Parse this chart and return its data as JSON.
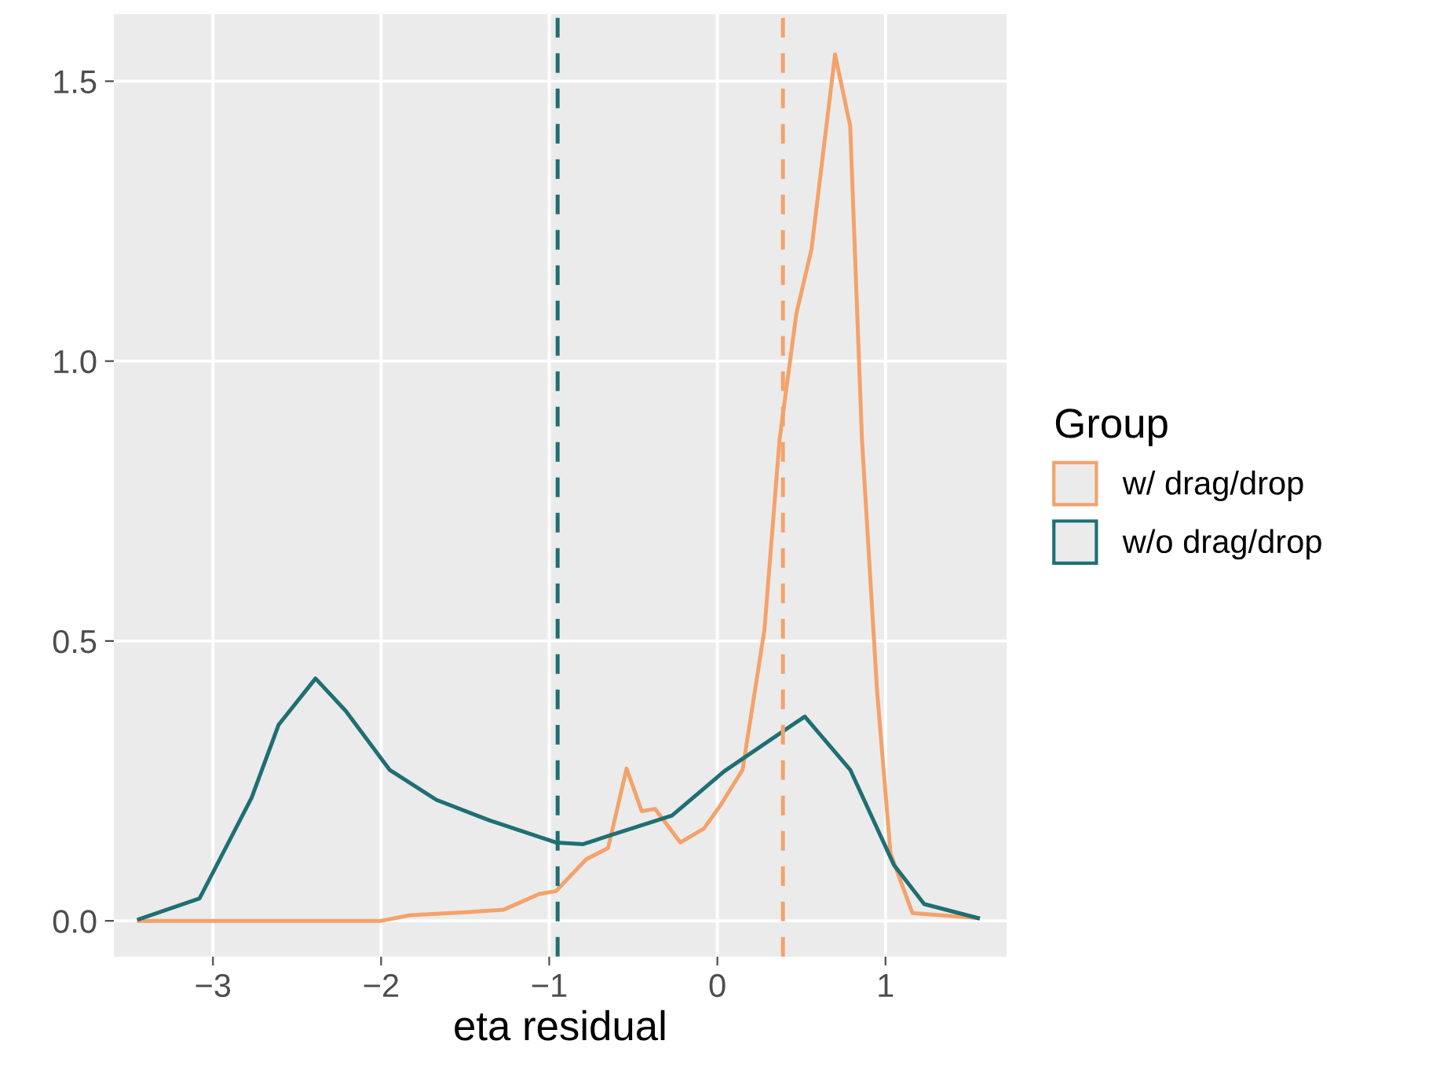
{
  "chart_data": {
    "type": "line",
    "xlabel": "eta residual",
    "legend_title": "Group",
    "legend": "right",
    "grid": true,
    "xlim": [
      -3.59,
      1.72
    ],
    "ylim": [
      -0.064,
      1.62
    ],
    "xticks": [
      -3,
      -2,
      -1,
      0,
      1
    ],
    "yticks": [
      {
        "value": 0,
        "label": "0.0"
      },
      {
        "value": 0.5,
        "label": "0.5"
      },
      {
        "value": 1,
        "label": "1.0"
      },
      {
        "value": 1.5,
        "label": "1.5"
      }
    ],
    "series": [
      {
        "name": "w/ drag/drop",
        "color": "#f4a26b",
        "x": [
          -3.44,
          -2.5,
          -2.0,
          -1.83,
          -1.52,
          -1.27,
          -1.06,
          -0.96,
          -0.78,
          -0.65,
          -0.54,
          -0.45,
          -0.37,
          -0.22,
          -0.08,
          0.02,
          0.15,
          0.28,
          0.37,
          0.47,
          0.56,
          0.7,
          0.79,
          0.86,
          0.95,
          1.03,
          1.16,
          1.55
        ],
        "values": [
          0.0,
          0.0,
          0.0,
          0.01,
          0.015,
          0.02,
          0.048,
          0.053,
          0.11,
          0.13,
          0.272,
          0.196,
          0.2,
          0.14,
          0.165,
          0.207,
          0.27,
          0.52,
          0.86,
          1.085,
          1.2,
          1.548,
          1.42,
          0.86,
          0.41,
          0.12,
          0.014,
          0.005
        ]
      },
      {
        "name": "w/o drag/drop",
        "color": "#1f6f74",
        "x": [
          -3.44,
          -3.08,
          -2.77,
          -2.61,
          -2.39,
          -2.21,
          -1.95,
          -1.67,
          -1.36,
          -0.96,
          -0.8,
          -0.27,
          0.04,
          0.52,
          0.79,
          1.05,
          1.23,
          1.55
        ],
        "values": [
          0.003,
          0.04,
          0.22,
          0.35,
          0.433,
          0.375,
          0.27,
          0.216,
          0.18,
          0.14,
          0.137,
          0.188,
          0.267,
          0.365,
          0.27,
          0.1,
          0.03,
          0.005
        ]
      }
    ],
    "ref_lines": [
      {
        "axis": "x",
        "value": 0.39,
        "color": "#f4a26b",
        "line_style": "dashed"
      },
      {
        "axis": "x",
        "value": -0.95,
        "color": "#1f6f74",
        "line_style": "dashed"
      }
    ]
  }
}
